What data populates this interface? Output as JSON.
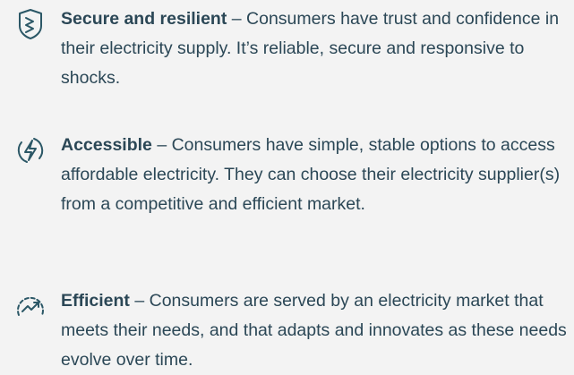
{
  "items": [
    {
      "title": "Secure and resilient",
      "text": "– Consumers have trust and confidence in their electricity supply. It’s reliable, secure and responsive to shocks."
    },
    {
      "title": "Accessible",
      "text": "– Consumers have simple, stable options to access affordable electricity. They can choose their electricity supplier(s) from a competitive and efficient market."
    },
    {
      "title": "Efficient",
      "text": "– Consumers are served by an electricity market that meets their needs, and that adapts and innovates as these needs evolve over time."
    }
  ]
}
